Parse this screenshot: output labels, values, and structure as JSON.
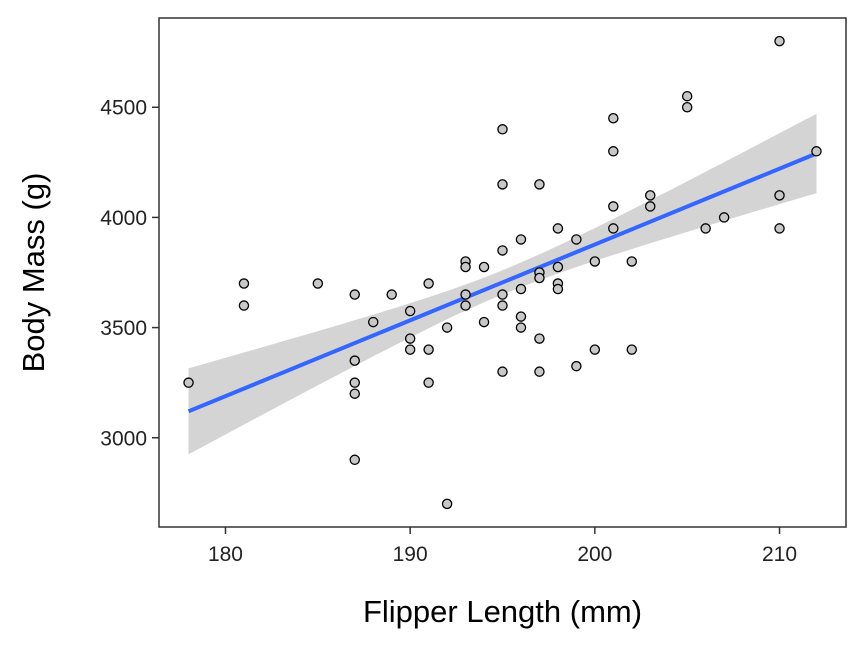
{
  "chart_data": {
    "type": "scatter",
    "xlabel": "Flipper Length (mm)",
    "ylabel": "Body Mass (g)",
    "xlim": [
      176.4,
      213.6
    ],
    "ylim": [
      2595,
      4905
    ],
    "x_ticks": [
      180,
      190,
      200,
      210
    ],
    "y_ticks": [
      3000,
      3500,
      4000,
      4500
    ],
    "grid": false,
    "legend": "none",
    "colors": {
      "points_fill": "#c8c8c8",
      "points_stroke": "#000000",
      "trend_line": "#3366ff",
      "confidence_band": "#d4d4d4"
    },
    "trend": {
      "method": "linear",
      "x": [
        178,
        212
      ],
      "y": [
        3120,
        4290
      ],
      "band_half_width_ends": [
        195,
        180
      ],
      "band_half_width_center": 55
    },
    "points": [
      {
        "x": 178,
        "y": 3250
      },
      {
        "x": 181,
        "y": 3700
      },
      {
        "x": 181,
        "y": 3600
      },
      {
        "x": 185,
        "y": 3700
      },
      {
        "x": 187,
        "y": 3650
      },
      {
        "x": 187,
        "y": 3350
      },
      {
        "x": 187,
        "y": 3250
      },
      {
        "x": 187,
        "y": 3200
      },
      {
        "x": 187,
        "y": 2900
      },
      {
        "x": 188,
        "y": 3525
      },
      {
        "x": 189,
        "y": 3650
      },
      {
        "x": 190,
        "y": 3575
      },
      {
        "x": 190,
        "y": 3450
      },
      {
        "x": 190,
        "y": 3400
      },
      {
        "x": 191,
        "y": 3700
      },
      {
        "x": 191,
        "y": 3400
      },
      {
        "x": 191,
        "y": 3250
      },
      {
        "x": 192,
        "y": 3500
      },
      {
        "x": 192,
        "y": 2700
      },
      {
        "x": 193,
        "y": 3800
      },
      {
        "x": 193,
        "y": 3775
      },
      {
        "x": 193,
        "y": 3650
      },
      {
        "x": 193,
        "y": 3600
      },
      {
        "x": 194,
        "y": 3775
      },
      {
        "x": 194,
        "y": 3525
      },
      {
        "x": 195,
        "y": 4400
      },
      {
        "x": 195,
        "y": 4150
      },
      {
        "x": 195,
        "y": 3850
      },
      {
        "x": 195,
        "y": 3650
      },
      {
        "x": 195,
        "y": 3600
      },
      {
        "x": 195,
        "y": 3300
      },
      {
        "x": 196,
        "y": 3900
      },
      {
        "x": 196,
        "y": 3675
      },
      {
        "x": 196,
        "y": 3550
      },
      {
        "x": 196,
        "y": 3500
      },
      {
        "x": 197,
        "y": 4150
      },
      {
        "x": 197,
        "y": 3750
      },
      {
        "x": 197,
        "y": 3725
      },
      {
        "x": 197,
        "y": 3450
      },
      {
        "x": 197,
        "y": 3300
      },
      {
        "x": 198,
        "y": 3950
      },
      {
        "x": 198,
        "y": 3775
      },
      {
        "x": 198,
        "y": 3700
      },
      {
        "x": 198,
        "y": 3675
      },
      {
        "x": 199,
        "y": 3900
      },
      {
        "x": 199,
        "y": 3325
      },
      {
        "x": 200,
        "y": 3800
      },
      {
        "x": 200,
        "y": 3400
      },
      {
        "x": 201,
        "y": 4450
      },
      {
        "x": 201,
        "y": 4300
      },
      {
        "x": 201,
        "y": 4050
      },
      {
        "x": 201,
        "y": 3950
      },
      {
        "x": 202,
        "y": 3800
      },
      {
        "x": 202,
        "y": 3400
      },
      {
        "x": 203,
        "y": 4100
      },
      {
        "x": 203,
        "y": 4050
      },
      {
        "x": 205,
        "y": 4550
      },
      {
        "x": 205,
        "y": 4500
      },
      {
        "x": 206,
        "y": 3950
      },
      {
        "x": 207,
        "y": 4000
      },
      {
        "x": 210,
        "y": 4800
      },
      {
        "x": 210,
        "y": 4100
      },
      {
        "x": 210,
        "y": 3950
      },
      {
        "x": 212,
        "y": 4300
      }
    ]
  }
}
